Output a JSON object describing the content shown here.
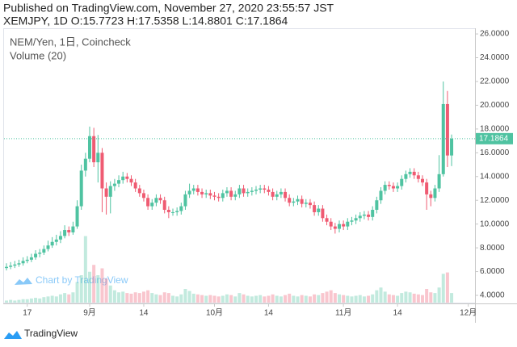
{
  "header": {
    "published": "Published on TradingView.com, November 27, 2020 23:55:57 JST",
    "symbol_line": "XEMJPY, 1D O:15.7723 H:17.5358 L:14.8801 C:17.1864"
  },
  "chart_data": {
    "type": "candlestick",
    "legend": [
      "NEM/Yen, 1日, Coincheck",
      "Volume (20)"
    ],
    "watermark": "Chart by TradingView",
    "up_color": "#4fc3a1",
    "down_color": "#ef5b72",
    "categories": [
      "08-12",
      "08-13",
      "08-14",
      "08-15",
      "08-16",
      "08-17",
      "08-18",
      "08-19",
      "08-20",
      "08-21",
      "08-22",
      "08-23",
      "08-24",
      "08-25",
      "08-26",
      "08-27",
      "08-28",
      "08-29",
      "08-30",
      "08-31",
      "09-01",
      "09-02",
      "09-03",
      "09-04",
      "09-05",
      "09-06",
      "09-07",
      "09-08",
      "09-09",
      "09-10",
      "09-11",
      "09-12",
      "09-13",
      "09-14",
      "09-15",
      "09-16",
      "09-17",
      "09-18",
      "09-19",
      "09-20",
      "09-21",
      "09-22",
      "09-23",
      "09-24",
      "09-25",
      "09-26",
      "09-27",
      "09-28",
      "09-29",
      "09-30",
      "10-01",
      "10-02",
      "10-03",
      "10-04",
      "10-05",
      "10-06",
      "10-07",
      "10-08",
      "10-09",
      "10-10",
      "10-11",
      "10-12",
      "10-13",
      "10-14",
      "10-15",
      "10-16",
      "10-17",
      "10-18",
      "10-19",
      "10-20",
      "10-21",
      "10-22",
      "10-23",
      "10-24",
      "10-25",
      "10-26",
      "10-27",
      "10-28",
      "10-29",
      "10-30",
      "10-31",
      "11-01",
      "11-02",
      "11-03",
      "11-04",
      "11-05",
      "11-06",
      "11-07",
      "11-08",
      "11-09",
      "11-10",
      "11-11",
      "11-12",
      "11-13",
      "11-14",
      "11-15",
      "11-16",
      "11-17",
      "11-18",
      "11-19",
      "11-20",
      "11-21",
      "11-22",
      "11-23",
      "11-24",
      "11-25",
      "11-26",
      "11-27"
    ],
    "open": [
      6.3,
      6.4,
      6.5,
      6.6,
      6.7,
      6.9,
      7.0,
      7.2,
      7.5,
      7.6,
      7.9,
      8.2,
      8.5,
      8.7,
      9.0,
      9.5,
      9.3,
      9.8,
      11.5,
      14.5,
      15.5,
      17.4,
      15.2,
      16.0,
      13.0,
      12.3,
      13.2,
      13.4,
      13.7,
      14.0,
      13.8,
      13.5,
      13.0,
      12.6,
      12.2,
      11.5,
      11.8,
      12.2,
      12.0,
      11.2,
      11.0,
      11.0,
      11.1,
      11.5,
      12.5,
      12.8,
      13.0,
      12.7,
      12.5,
      12.6,
      12.4,
      12.3,
      12.2,
      12.6,
      12.8,
      12.3,
      12.5,
      13.0,
      12.6,
      12.7,
      12.8,
      12.9,
      13.0,
      12.9,
      12.7,
      12.3,
      12.5,
      12.7,
      12.2,
      11.8,
      11.9,
      12.1,
      11.7,
      11.8,
      11.6,
      11.0,
      11.3,
      10.5,
      10.2,
      9.8,
      9.6,
      10.0,
      9.8,
      10.2,
      10.3,
      10.5,
      10.7,
      10.8,
      10.6,
      11.2,
      12.0,
      12.8,
      13.3,
      13.2,
      13.0,
      13.2,
      13.8,
      14.2,
      14.4,
      14.1,
      13.8,
      13.5,
      12.5,
      12.2,
      13.0,
      14.2,
      20.1,
      15.7723
    ],
    "high": [
      6.7,
      6.8,
      6.9,
      7.0,
      7.2,
      7.3,
      7.5,
      7.8,
      7.9,
      8.2,
      8.6,
      8.9,
      9.1,
      9.4,
      9.9,
      9.8,
      10.2,
      12.0,
      15.0,
      16.0,
      18.2,
      18.1,
      17.5,
      16.4,
      13.5,
      13.6,
      13.8,
      14.1,
      14.4,
      14.3,
      14.1,
      13.8,
      13.3,
      12.9,
      12.5,
      12.1,
      12.5,
      12.5,
      12.3,
      11.5,
      11.3,
      11.4,
      11.8,
      12.8,
      13.4,
      13.3,
      13.3,
      13.0,
      12.9,
      12.9,
      12.7,
      12.6,
      12.9,
      13.1,
      13.1,
      12.8,
      13.3,
      13.3,
      13.0,
      13.1,
      13.2,
      13.3,
      13.3,
      13.2,
      13.0,
      12.8,
      13.0,
      13.0,
      12.5,
      12.2,
      12.4,
      12.4,
      12.1,
      12.1,
      11.9,
      11.6,
      11.6,
      10.8,
      10.5,
      10.1,
      10.3,
      10.3,
      10.5,
      10.6,
      10.8,
      11.0,
      11.1,
      11.1,
      11.5,
      12.3,
      13.1,
      13.6,
      13.6,
      13.5,
      13.5,
      14.1,
      14.5,
      14.7,
      14.7,
      14.4,
      14.1,
      13.8,
      12.8,
      13.3,
      15.8,
      22.0,
      21.2,
      17.5358
    ],
    "low": [
      6.1,
      6.2,
      6.3,
      6.4,
      6.5,
      6.7,
      6.8,
      7.0,
      7.2,
      7.4,
      7.7,
      8.0,
      8.2,
      8.4,
      8.8,
      9.0,
      9.1,
      9.6,
      11.2,
      14.0,
      15.2,
      14.8,
      13.5,
      11.0,
      10.8,
      10.9,
      12.8,
      13.1,
      13.4,
      13.5,
      13.2,
      12.7,
      12.3,
      11.9,
      11.2,
      11.2,
      11.5,
      11.7,
      10.9,
      10.5,
      10.7,
      10.7,
      10.8,
      11.2,
      12.2,
      12.5,
      12.4,
      12.2,
      12.2,
      12.1,
      12.0,
      11.9,
      11.9,
      12.3,
      12.0,
      12.0,
      12.2,
      12.3,
      12.3,
      12.4,
      12.5,
      12.6,
      12.6,
      12.4,
      12.0,
      12.0,
      12.2,
      11.9,
      11.5,
      11.5,
      11.6,
      11.4,
      11.4,
      11.3,
      10.7,
      10.7,
      10.2,
      9.9,
      9.5,
      9.2,
      9.3,
      9.5,
      9.5,
      9.9,
      10.0,
      10.2,
      10.4,
      10.3,
      10.3,
      10.9,
      11.7,
      12.5,
      12.9,
      12.7,
      12.7,
      12.9,
      13.5,
      13.9,
      13.8,
      13.5,
      13.2,
      11.2,
      11.5,
      11.9,
      12.7,
      14.0,
      14.8,
      14.8801
    ],
    "close": [
      6.4,
      6.5,
      6.6,
      6.7,
      6.9,
      7.0,
      7.2,
      7.5,
      7.6,
      7.9,
      8.2,
      8.5,
      8.7,
      9.0,
      9.5,
      9.3,
      9.8,
      11.5,
      14.5,
      15.5,
      17.4,
      15.2,
      16.0,
      13.0,
      12.3,
      13.2,
      13.4,
      13.7,
      14.0,
      13.8,
      13.5,
      13.0,
      12.6,
      12.2,
      11.5,
      11.8,
      12.2,
      12.0,
      11.2,
      11.0,
      11.0,
      11.1,
      11.5,
      12.5,
      12.8,
      13.0,
      12.7,
      12.5,
      12.6,
      12.4,
      12.3,
      12.2,
      12.6,
      12.8,
      12.3,
      12.5,
      13.0,
      12.6,
      12.7,
      12.8,
      12.9,
      13.0,
      12.9,
      12.7,
      12.3,
      12.5,
      12.7,
      12.2,
      11.8,
      11.9,
      12.1,
      11.7,
      11.8,
      11.6,
      11.0,
      11.3,
      10.5,
      10.2,
      9.8,
      9.6,
      10.0,
      9.8,
      10.2,
      10.3,
      10.5,
      10.7,
      10.8,
      10.6,
      11.2,
      12.0,
      12.8,
      13.3,
      13.2,
      13.0,
      13.2,
      13.8,
      14.2,
      14.4,
      14.1,
      13.8,
      13.5,
      12.5,
      12.2,
      13.0,
      14.2,
      20.1,
      15.7723,
      17.1864
    ],
    "volume": [
      3,
      4,
      3,
      4,
      5,
      5,
      6,
      7,
      6,
      8,
      9,
      10,
      9,
      12,
      14,
      12,
      15,
      30,
      40,
      97,
      45,
      55,
      40,
      50,
      35,
      25,
      18,
      15,
      16,
      14,
      13,
      15,
      14,
      16,
      18,
      14,
      12,
      11,
      15,
      14,
      10,
      9,
      12,
      20,
      17,
      13,
      12,
      11,
      10,
      11,
      10,
      9,
      10,
      12,
      11,
      9,
      14,
      12,
      10,
      9,
      10,
      11,
      9,
      10,
      12,
      10,
      9,
      11,
      13,
      10,
      9,
      11,
      10,
      9,
      12,
      11,
      14,
      16,
      18,
      14,
      12,
      11,
      10,
      9,
      10,
      11,
      9,
      10,
      12,
      18,
      22,
      16,
      12,
      11,
      10,
      14,
      16,
      15,
      13,
      12,
      11,
      20,
      15,
      14,
      22,
      42,
      44,
      14
    ],
    "ylim": [
      3.39,
      26.48
    ],
    "yticks": [
      {
        "value": 4,
        "label": "4.0000"
      },
      {
        "value": 6,
        "label": "6.0000"
      },
      {
        "value": 8,
        "label": "8.0000"
      },
      {
        "value": 10,
        "label": "10.0000"
      },
      {
        "value": 12,
        "label": "12.0000"
      },
      {
        "value": 14,
        "label": "14.0000"
      },
      {
        "value": 16,
        "label": "16.0000"
      },
      {
        "value": 18,
        "label": "18.0000"
      },
      {
        "value": 20,
        "label": "20.0000"
      },
      {
        "value": 22,
        "label": "22.0000"
      },
      {
        "value": 24,
        "label": "24.0000"
      },
      {
        "value": 26,
        "label": "26.0000"
      }
    ],
    "xticks": [
      {
        "value": "08-17",
        "label": "17"
      },
      {
        "value": "09-01",
        "label": "9月"
      },
      {
        "value": "09-14",
        "label": "14"
      },
      {
        "value": "10-01",
        "label": "10月"
      },
      {
        "value": "10-14",
        "label": "14"
      },
      {
        "value": "11-01",
        "label": "11月"
      },
      {
        "value": "11-14",
        "label": "14"
      },
      {
        "value": "12-01",
        "label": "12月"
      }
    ],
    "last_price_line": true
  },
  "footer": {
    "brand": "TradingView"
  }
}
